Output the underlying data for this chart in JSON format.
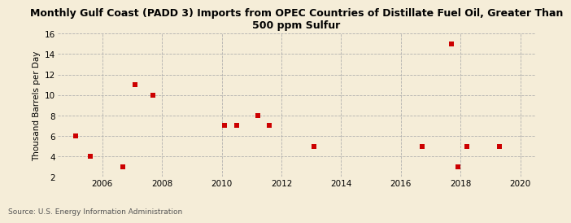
{
  "title": "Monthly Gulf Coast (PADD 3) Imports from OPEC Countries of Distillate Fuel Oil, Greater Than\n500 ppm Sulfur",
  "ylabel": "Thousand Barrels per Day",
  "source": "Source: U.S. Energy Information Administration",
  "background_color": "#f5edd8",
  "scatter_color": "#cc0000",
  "marker": "s",
  "marker_size": 16,
  "xlim": [
    2004.5,
    2020.5
  ],
  "ylim": [
    2,
    16
  ],
  "yticks": [
    2,
    4,
    6,
    8,
    10,
    12,
    14,
    16
  ],
  "xticks": [
    2006,
    2008,
    2010,
    2012,
    2014,
    2016,
    2018,
    2020
  ],
  "data_x": [
    2005.1,
    2005.6,
    2006.7,
    2007.1,
    2007.7,
    2010.1,
    2010.5,
    2011.2,
    2011.6,
    2013.1,
    2016.7,
    2017.7,
    2017.9,
    2018.2,
    2019.3
  ],
  "data_y": [
    6,
    4,
    3,
    11,
    10,
    7,
    7,
    8,
    7,
    5,
    5,
    15,
    3,
    5,
    5
  ]
}
